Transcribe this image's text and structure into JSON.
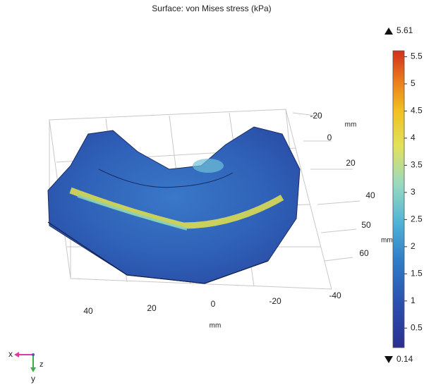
{
  "title": "Surface: von Mises stress (kPa)",
  "colorbar": {
    "max": 5.61,
    "min": 0.14,
    "ticks": [
      0.5,
      1,
      1.5,
      2,
      2.5,
      3,
      3.5,
      4,
      4.5,
      5,
      5.5
    ]
  },
  "axes": {
    "front": {
      "labels": [
        "40",
        "20",
        "0",
        "-20",
        "-40"
      ],
      "unit": "mm"
    },
    "right": {
      "labels": [
        "-20",
        "0",
        "20",
        "40",
        "50",
        "60"
      ],
      "unit": "mm"
    },
    "vertical": {
      "unit": "mm"
    }
  },
  "triad": {
    "x": "x",
    "y": "y",
    "z": "z"
  }
}
